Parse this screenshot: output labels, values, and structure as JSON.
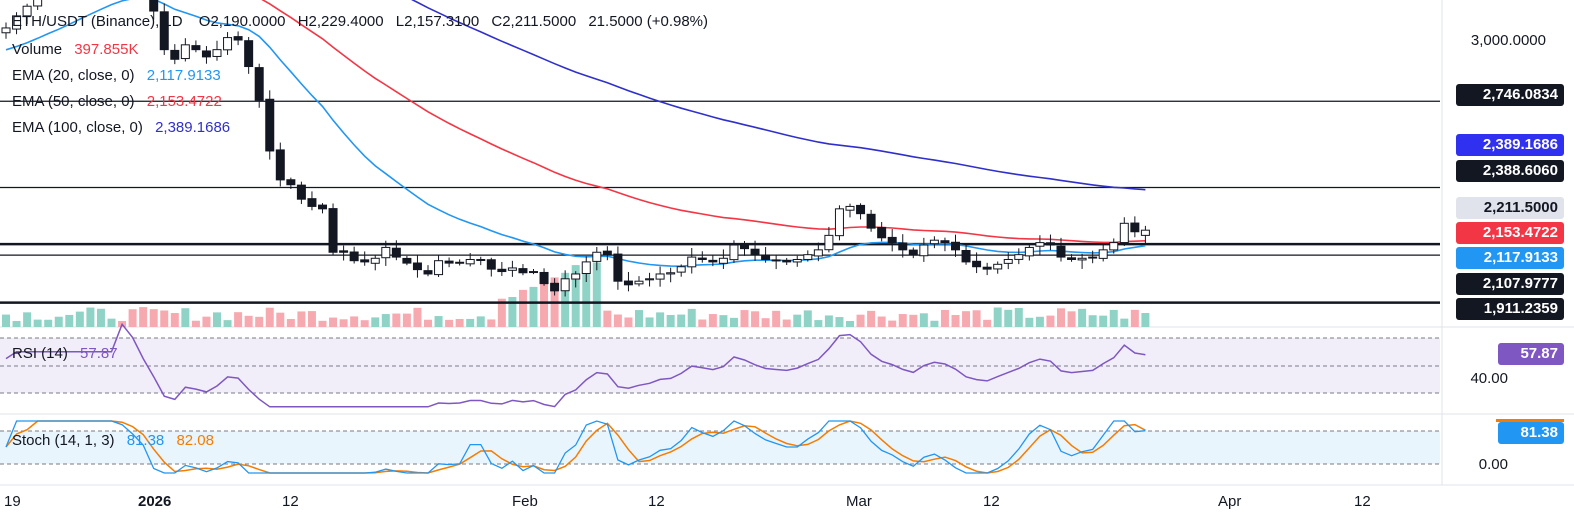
{
  "header": {
    "symbol": "ETH/USDT (Binance), 1D",
    "open": "O2,190.0000",
    "high": "H2,229.4000",
    "low": "L2,157.3100",
    "close": "C2,211.5000",
    "change": "21.5000 (+0.98%)"
  },
  "legend": {
    "volume_label": "Volume",
    "volume_value": "397.855K",
    "ema20_label": "EMA (20, close, 0)",
    "ema20_value": "2,117.9133",
    "ema50_label": "EMA (50, close, 0)",
    "ema50_value": "2,153.4722",
    "ema100_label": "EMA (100, close, 0)",
    "ema100_value": "2,389.1686",
    "rsi_label": "RSI (14)",
    "rsi_value": "57.87",
    "stoch_label": "Stoch (14, 1, 3)",
    "stoch_k": "81.38",
    "stoch_d": "82.08"
  },
  "price_axis": {
    "tick_3000": "3,000.0000",
    "tag_2746": "2,746.0834",
    "tag_ema100": "2,389.1686",
    "tag_2388": "2,388.6060",
    "tag_close": "2,211.5000",
    "tag_ema50": "2,153.4722",
    "tag_ema20": "2,117.9133",
    "tag_2107": "2,107.9777",
    "tag_1911": "1,911.2359",
    "rsi_tag": "57.87",
    "rsi_tick": "40.00",
    "stoch_tag": "81.38",
    "stoch_tick": "0.00"
  },
  "time_axis": [
    "19",
    "2026",
    "12",
    "Feb",
    "12",
    "Mar",
    "12",
    "Apr",
    "12"
  ],
  "colors": {
    "up": "#089981",
    "down": "#f23645",
    "ema20": "#2196f3",
    "ema50": "#f23645",
    "ema100": "#3030c8",
    "rsi": "#7e57c2",
    "stoch_k": "#2196f3",
    "stoch_d": "#f57c00"
  },
  "chart_data": {
    "type": "line",
    "subtype": "candlestick with indicators",
    "title": "ETH/USDT (Binance), 1D",
    "horizontal_levels": [
      2746.0834,
      2388.606,
      2153.4722,
      2107.9777,
      1911.2359
    ],
    "ohlc_last": {
      "open": 2190.0,
      "high": 2229.4,
      "low": 2157.31,
      "close": 2211.5
    },
    "closes_approx": [
      3050,
      3100,
      3140,
      3180,
      3210,
      3220,
      3260,
      3290,
      3300,
      3320,
      3330,
      3310,
      3260,
      3200,
      3120,
      2960,
      2920,
      2980,
      2960,
      2930,
      2960,
      3010,
      3000,
      2890,
      2750,
      2540,
      2420,
      2400,
      2340,
      2310,
      2300,
      2120,
      2120,
      2085,
      2080,
      2095,
      2140,
      2100,
      2075,
      2048,
      2030,
      2085,
      2075,
      2078,
      2090,
      2090,
      2050,
      2040,
      2055,
      2035,
      2040,
      1990,
      1960,
      2010,
      2030,
      2080,
      2120,
      2110,
      2000,
      1985,
      2000,
      2010,
      2030,
      2035,
      2060,
      2100,
      2090,
      2080,
      2095,
      2150,
      2135,
      2110,
      2090,
      2085,
      2080,
      2090,
      2110,
      2130,
      2190,
      2300,
      2310,
      2280,
      2220,
      2180,
      2160,
      2130,
      2110,
      2150,
      2170,
      2160,
      2130,
      2080,
      2060,
      2050,
      2070,
      2090,
      2110,
      2140,
      2160,
      2150,
      2100,
      2090,
      2095,
      2100,
      2130,
      2160,
      2240,
      2205,
      2211.5
    ],
    "ema20_last": 2117.9133,
    "ema50_last": 2153.4722,
    "ema100_last": 2389.1686,
    "rsi_last": 57.87,
    "stoch_k_last": 81.38,
    "stoch_d_last": 82.08,
    "ylim": [
      1850,
      3050
    ]
  }
}
